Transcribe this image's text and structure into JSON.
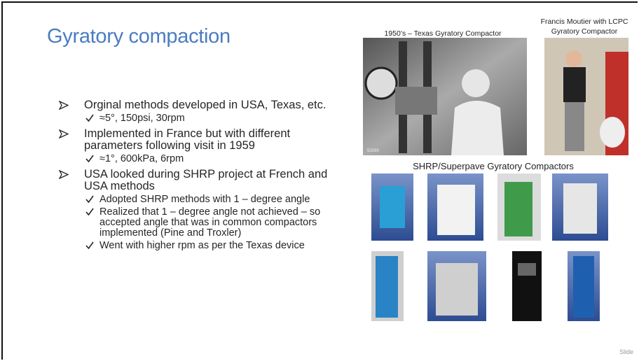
{
  "title": "Gyratory compaction",
  "bullets": [
    {
      "text": "Orginal methods developed in USA, Texas, etc.",
      "sub": [
        "≈5°, 150psi, 30rpm"
      ]
    },
    {
      "text": "Implemented in France but with different parameters following visit in 1959",
      "sub": [
        "≈1°, 600kPa, 6rpm"
      ]
    },
    {
      "text": "USA looked during SHRP project at French and USA methods",
      "sub": [
        "Adopted SHRP methods with 1 – degree angle",
        "Realized that 1 – degree angle not achieved – so accepted angle that was in common compactors implemented (Pine and Troxler)",
        "Went with higher rpm as per the Texas device"
      ]
    }
  ],
  "images": {
    "texas_caption": "1950’s – Texas Gyratory Compactor",
    "texas_photo_number": "53299",
    "moutier_caption": "Francis Moutier with LCPC Gyratory Compactor",
    "shrp_caption": "SHRP/Superpave Gyratory Compactors"
  },
  "footer": "Slide"
}
